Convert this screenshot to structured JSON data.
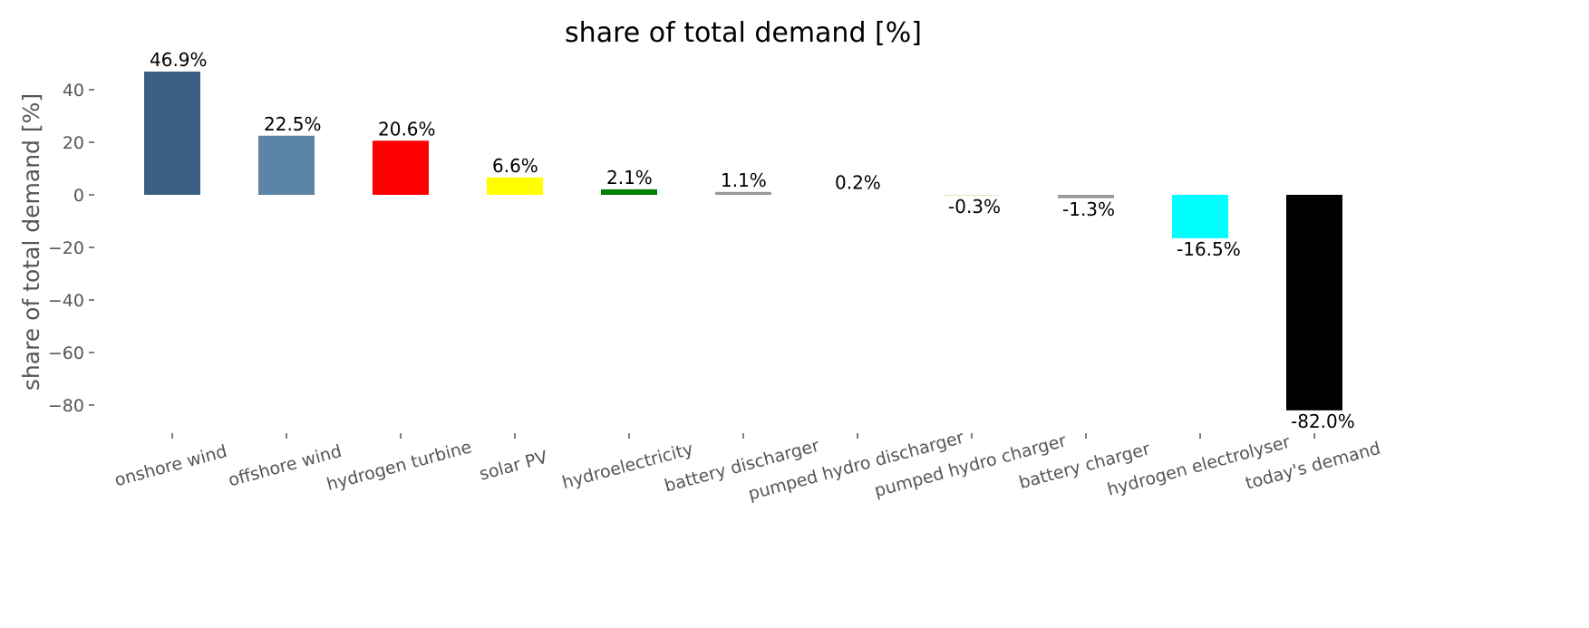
{
  "chart_data": {
    "type": "bar",
    "title": "share of total demand [%]",
    "xlabel": "",
    "ylabel": "share of total demand [%]",
    "ylim": [
      -90,
      50
    ],
    "yticks": [
      40,
      20,
      0,
      -20,
      -40,
      -60,
      -80
    ],
    "grid": false,
    "categories": [
      "onshore wind",
      "offshore wind",
      "hydrogen turbine",
      "solar PV",
      "hydroelectricity",
      "battery discharger",
      "pumped hydro discharger",
      "pumped hydro charger",
      "battery charger",
      "hydrogen electrolyser",
      "today's demand"
    ],
    "values": [
      46.9,
      22.5,
      20.6,
      6.6,
      2.1,
      1.1,
      0.2,
      -0.3,
      -1.3,
      -16.5,
      -82.0
    ],
    "data_labels": [
      "46.9%",
      "22.5%",
      "20.6%",
      "6.6%",
      "2.1%",
      "1.1%",
      "0.2%",
      "-0.3%",
      "-1.3%",
      "-16.5%",
      "-82.0%"
    ],
    "colors": [
      "#3b6182",
      "#5b84a5",
      "#ff0000",
      "#ffff00",
      "#008000",
      "#999999",
      "#ffffff",
      "#d4eab0",
      "#999999",
      "#00ffff",
      "#000000"
    ]
  }
}
